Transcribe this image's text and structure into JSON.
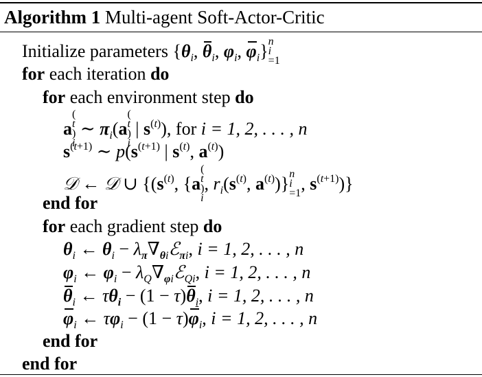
{
  "algorithm": {
    "label": "Algorithm 1",
    "name": "Multi-agent Soft-Actor-Critic"
  },
  "keywords": {
    "for": "for",
    "do": "do",
    "end_for": "end for"
  },
  "lines": {
    "init_text": "Initialize parameters",
    "loop1_text": "each iteration",
    "loop2_text": "each environment step",
    "loop3_text": "each gradient step",
    "action_suffix": ", for",
    "range": "i = 1, 2, . . . , n"
  }
}
